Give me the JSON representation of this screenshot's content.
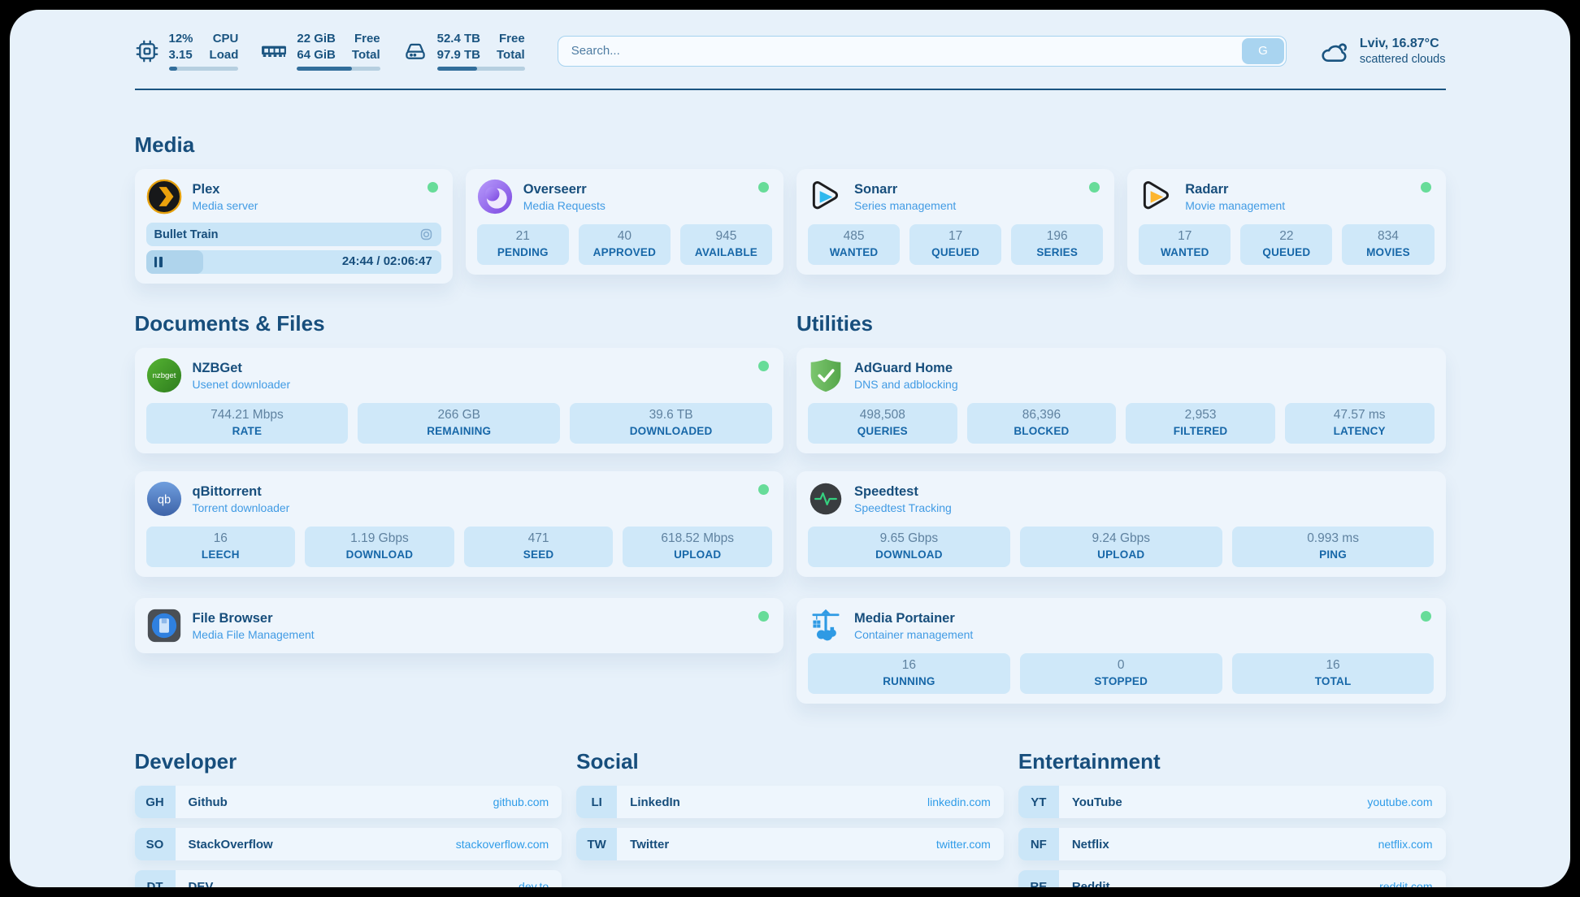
{
  "header": {
    "stats": [
      {
        "icon": "cpu-icon",
        "value_top": "12%",
        "value_bottom": "3.15",
        "label_top": "CPU",
        "label_bottom": "Load",
        "progress_pct": 12
      },
      {
        "icon": "ram-icon",
        "value_top": "22 GiB",
        "value_bottom": "64 GiB",
        "label_top": "Free",
        "label_bottom": "Total",
        "progress_pct": 66
      },
      {
        "icon": "disk-icon",
        "value_top": "52.4 TB",
        "value_bottom": "97.9 TB",
        "label_top": "Free",
        "label_bottom": "Total",
        "progress_pct": 46
      }
    ],
    "search": {
      "placeholder": "Search...",
      "button_label": "G"
    },
    "weather": {
      "icon": "cloud-icon",
      "location_temp": "Lviv, 16.87°C",
      "condition": "scattered clouds"
    }
  },
  "sections": {
    "media": {
      "heading": "Media",
      "plex": {
        "name": "Plex",
        "subtitle": "Media server",
        "icon": "plex-icon",
        "online": true,
        "now_playing": {
          "title": "Bullet Train",
          "time": "24:44 / 02:06:47",
          "progress_pct": 19.5
        }
      },
      "overseerr": {
        "name": "Overseerr",
        "subtitle": "Media Requests",
        "icon": "overseerr-icon",
        "online": true,
        "stats": [
          {
            "value": "21",
            "label": "PENDING"
          },
          {
            "value": "40",
            "label": "APPROVED"
          },
          {
            "value": "945",
            "label": "AVAILABLE"
          }
        ]
      },
      "sonarr": {
        "name": "Sonarr",
        "subtitle": "Series management",
        "icon": "sonarr-icon",
        "online": true,
        "stats": [
          {
            "value": "485",
            "label": "WANTED"
          },
          {
            "value": "17",
            "label": "QUEUED"
          },
          {
            "value": "196",
            "label": "SERIES"
          }
        ]
      },
      "radarr": {
        "name": "Radarr",
        "subtitle": "Movie management",
        "icon": "radarr-icon",
        "online": true,
        "stats": [
          {
            "value": "17",
            "label": "WANTED"
          },
          {
            "value": "22",
            "label": "QUEUED"
          },
          {
            "value": "834",
            "label": "MOVIES"
          }
        ]
      }
    },
    "documents": {
      "heading": "Documents & Files",
      "nzbget": {
        "name": "NZBGet",
        "subtitle": "Usenet downloader",
        "icon": "nzbget-icon",
        "online": true,
        "stats": [
          {
            "value": "744.21 Mbps",
            "label": "RATE"
          },
          {
            "value": "266 GB",
            "label": "REMAINING"
          },
          {
            "value": "39.6 TB",
            "label": "DOWNLOADED"
          }
        ]
      },
      "qbittorrent": {
        "name": "qBittorrent",
        "subtitle": "Torrent downloader",
        "icon": "qbittorrent-icon",
        "online": true,
        "stats": [
          {
            "value": "16",
            "label": "LEECH"
          },
          {
            "value": "1.19 Gbps",
            "label": "DOWNLOAD"
          },
          {
            "value": "471",
            "label": "SEED"
          },
          {
            "value": "618.52 Mbps",
            "label": "UPLOAD"
          }
        ]
      },
      "filebrowser": {
        "name": "File Browser",
        "subtitle": "Media File Management",
        "icon": "filebrowser-icon",
        "online": true
      }
    },
    "utilities": {
      "heading": "Utilities",
      "adguard": {
        "name": "AdGuard Home",
        "subtitle": "DNS and adblocking",
        "icon": "adguard-icon",
        "stats": [
          {
            "value": "498,508",
            "label": "QUERIES"
          },
          {
            "value": "86,396",
            "label": "BLOCKED"
          },
          {
            "value": "2,953",
            "label": "FILTERED"
          },
          {
            "value": "47.57 ms",
            "label": "LATENCY"
          }
        ]
      },
      "speedtest": {
        "name": "Speedtest",
        "subtitle": "Speedtest Tracking",
        "icon": "speedtest-icon",
        "stats": [
          {
            "value": "9.65 Gbps",
            "label": "DOWNLOAD"
          },
          {
            "value": "9.24 Gbps",
            "label": "UPLOAD"
          },
          {
            "value": "0.993 ms",
            "label": "PING"
          }
        ]
      },
      "portainer": {
        "name": "Media Portainer",
        "subtitle": "Container management",
        "icon": "portainer-crane-icon",
        "online": true,
        "stats": [
          {
            "value": "16",
            "label": "RUNNING"
          },
          {
            "value": "0",
            "label": "STOPPED"
          },
          {
            "value": "16",
            "label": "TOTAL"
          }
        ]
      }
    },
    "developer": {
      "heading": "Developer",
      "links": [
        {
          "abbr": "GH",
          "label": "Github",
          "url": "github.com"
        },
        {
          "abbr": "SO",
          "label": "StackOverflow",
          "url": "stackoverflow.com"
        },
        {
          "abbr": "DT",
          "label": "DEV",
          "url": "dev.to"
        }
      ]
    },
    "social": {
      "heading": "Social",
      "links": [
        {
          "abbr": "LI",
          "label": "LinkedIn",
          "url": "linkedin.com"
        },
        {
          "abbr": "TW",
          "label": "Twitter",
          "url": "twitter.com"
        }
      ]
    },
    "entertainment": {
      "heading": "Entertainment",
      "links": [
        {
          "abbr": "YT",
          "label": "YouTube",
          "url": "youtube.com"
        },
        {
          "abbr": "NF",
          "label": "Netflix",
          "url": "netflix.com"
        },
        {
          "abbr": "RE",
          "label": "Reddit",
          "url": "reddit.com"
        }
      ]
    }
  },
  "theme": {
    "background": "#e7f1fa",
    "card_background": "#eef5fc",
    "stat_box_background": "#cfe8f9",
    "primary_text": "#174e7c",
    "subtitle_text": "#419be4",
    "stat_value_text": "#5f82a0",
    "stat_label_text": "#1767a8",
    "link_url_text": "#2f9ce8",
    "online_dot": "#67dc99",
    "progress_fill": "#326e9b"
  }
}
